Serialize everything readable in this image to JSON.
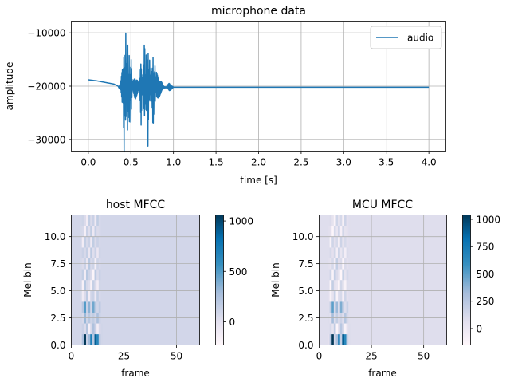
{
  "chart_data": [
    {
      "type": "line",
      "title": "microphone data",
      "xlabel": "time [s]",
      "ylabel": "amplitude",
      "xlim": [
        -0.2,
        4.2
      ],
      "ylim": [
        -32200,
        -7800
      ],
      "xticks": [
        0.0,
        0.5,
        1.0,
        1.5,
        2.0,
        2.5,
        3.0,
        3.5,
        4.0
      ],
      "xtick_labels": [
        "0.0",
        "0.5",
        "1.0",
        "1.5",
        "2.0",
        "2.5",
        "3.0",
        "3.5",
        "4.0"
      ],
      "yticks": [
        -30000,
        -20000,
        -10000
      ],
      "ytick_labels": [
        "−30000",
        "−20000",
        "−10000"
      ],
      "grid": true,
      "legend": "top-right",
      "series": [
        {
          "name": "audio",
          "color": "#1f77b4",
          "x": [
            0.0,
            0.1,
            0.2,
            0.3,
            0.35,
            0.38,
            0.4,
            0.42,
            0.44,
            0.46,
            0.48,
            0.5,
            0.52,
            0.55,
            0.58,
            0.6,
            0.62,
            0.64,
            0.66,
            0.68,
            0.7,
            0.72,
            0.74,
            0.76,
            0.78,
            0.8,
            0.85,
            0.9,
            0.95,
            1.0,
            1.5,
            2.0,
            2.5,
            3.0,
            3.5,
            4.0
          ],
          "y": [
            -18800,
            -19000,
            -19300,
            -19600,
            -20000,
            -21000,
            -24000,
            -8000,
            -31000,
            -9000,
            -29000,
            -13000,
            -21000,
            -22500,
            -21500,
            -20500,
            -13000,
            -23000,
            -10500,
            -27500,
            -9000,
            -25500,
            -15000,
            -29000,
            -14500,
            -23000,
            -21500,
            -20000,
            -21000,
            -20200,
            -20200,
            -20200,
            -20200,
            -20200,
            -20200,
            -20200
          ]
        }
      ]
    },
    {
      "type": "heatmap",
      "title": "host MFCC",
      "xlabel": "frame",
      "ylabel": "Mel bin",
      "xlim": [
        0,
        61
      ],
      "ylim": [
        0,
        12
      ],
      "xticks": [
        0,
        25,
        50
      ],
      "xtick_labels": [
        "0",
        "25",
        "50"
      ],
      "yticks": [
        0.0,
        2.5,
        5.0,
        7.5,
        10.0
      ],
      "ytick_labels": [
        "0.0",
        "2.5",
        "5.0",
        "7.5",
        "10.0"
      ],
      "grid": true,
      "colorbar": {
        "min": -230,
        "max": 1060,
        "ticks": [
          0,
          500,
          1000
        ],
        "tick_labels": [
          "0",
          "500",
          "1000"
        ]
      },
      "background_value": 80,
      "active_values": {
        "frames": [
          4,
          5,
          6,
          7,
          8,
          9,
          10,
          11,
          12,
          13,
          14,
          15
        ],
        "bins": [
          [
            60,
            250,
            1060,
            120,
            300,
            700,
            200,
            900,
            650,
            180,
            90,
            80
          ],
          [
            80,
            120,
            40,
            220,
            -150,
            60,
            250,
            120,
            -120,
            60,
            90,
            80
          ],
          [
            90,
            60,
            320,
            90,
            200,
            100,
            160,
            80,
            260,
            120,
            80,
            80
          ],
          [
            80,
            200,
            500,
            120,
            350,
            80,
            420,
            200,
            90,
            180,
            80,
            80
          ],
          [
            70,
            -100,
            40,
            180,
            -120,
            90,
            120,
            -80,
            150,
            60,
            80,
            80
          ],
          [
            80,
            -160,
            200,
            60,
            20,
            -180,
            140,
            40,
            -120,
            90,
            80,
            80
          ],
          [
            80,
            150,
            -120,
            200,
            100,
            40,
            -200,
            180,
            40,
            120,
            80,
            80
          ],
          [
            70,
            40,
            120,
            -60,
            200,
            60,
            100,
            -150,
            100,
            60,
            80,
            80
          ],
          [
            80,
            120,
            60,
            140,
            -60,
            180,
            20,
            120,
            -60,
            100,
            80,
            80
          ],
          [
            80,
            -120,
            150,
            60,
            120,
            -100,
            160,
            40,
            120,
            70,
            80,
            80
          ],
          [
            70,
            60,
            -150,
            120,
            20,
            160,
            -80,
            140,
            40,
            60,
            80,
            80
          ],
          [
            80,
            100,
            40,
            -120,
            150,
            40,
            120,
            -100,
            160,
            60,
            80,
            80
          ]
        ]
      }
    },
    {
      "type": "heatmap",
      "title": "MCU MFCC",
      "xlabel": "frame",
      "ylabel": "Mel bin",
      "xlim": [
        0,
        61
      ],
      "ylim": [
        0,
        12
      ],
      "xticks": [
        0,
        25,
        50
      ],
      "xtick_labels": [
        "0",
        "25",
        "50"
      ],
      "yticks": [
        0.0,
        2.5,
        5.0,
        7.5,
        10.0
      ],
      "ytick_labels": [
        "0.0",
        "2.5",
        "5.0",
        "7.5",
        "10.0"
      ],
      "grid": true,
      "colorbar": {
        "min": -150,
        "max": 1040,
        "ticks": [
          0,
          250,
          500,
          750,
          1000
        ],
        "tick_labels": [
          "0",
          "250",
          "500",
          "750",
          "1000"
        ]
      },
      "background_value": 80,
      "active_values": {
        "frames": [
          4,
          5,
          6,
          7,
          8,
          9,
          10,
          11,
          12,
          13,
          14,
          15
        ],
        "bins": [
          [
            60,
            250,
            1040,
            120,
            300,
            700,
            200,
            900,
            650,
            180,
            90,
            80
          ],
          [
            80,
            120,
            40,
            220,
            -120,
            60,
            250,
            120,
            -100,
            60,
            90,
            80
          ],
          [
            90,
            60,
            320,
            90,
            200,
            100,
            160,
            80,
            260,
            120,
            80,
            80
          ],
          [
            80,
            200,
            500,
            120,
            350,
            80,
            420,
            200,
            90,
            180,
            80,
            80
          ],
          [
            70,
            -90,
            40,
            180,
            -100,
            90,
            120,
            -80,
            150,
            60,
            80,
            80
          ],
          [
            80,
            -140,
            200,
            60,
            20,
            -140,
            140,
            40,
            -100,
            90,
            80,
            80
          ],
          [
            80,
            150,
            -100,
            200,
            100,
            40,
            -140,
            180,
            40,
            120,
            80,
            80
          ],
          [
            70,
            40,
            120,
            -60,
            200,
            60,
            100,
            -130,
            100,
            60,
            80,
            80
          ],
          [
            80,
            120,
            60,
            140,
            -60,
            180,
            20,
            120,
            -60,
            100,
            80,
            80
          ],
          [
            80,
            -100,
            150,
            60,
            120,
            -90,
            160,
            40,
            120,
            70,
            80,
            80
          ],
          [
            70,
            60,
            -130,
            120,
            20,
            160,
            -80,
            140,
            40,
            60,
            80,
            80
          ],
          [
            80,
            100,
            40,
            -110,
            150,
            40,
            120,
            -90,
            160,
            60,
            80,
            80
          ]
        ]
      }
    }
  ]
}
